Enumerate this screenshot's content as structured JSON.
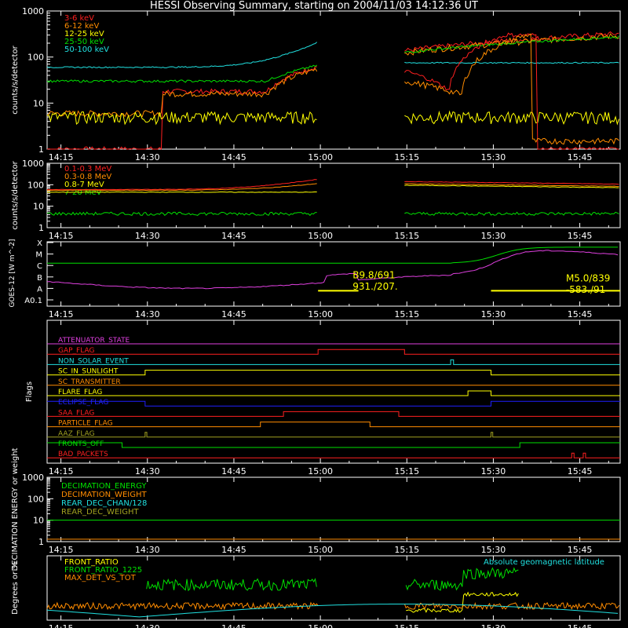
{
  "title": "HESSI Observing Summary, starting on 2004/11/03 14:12:36 UT",
  "time_ticks": [
    "14:15",
    "14:30",
    "14:45",
    "15:00",
    "15:15",
    "15:30",
    "15:45"
  ],
  "colors": {
    "white": "#ffffff",
    "red": "#ff2020",
    "orange": "#ff8c00",
    "yellow": "#ffff00",
    "green": "#00e000",
    "cyan": "#20e0e0",
    "magenta": "#e040e0",
    "blue": "#2020ff",
    "olive": "#a0a020"
  },
  "chart_data": [
    {
      "type": "line",
      "ylabel": "counts/s/detector",
      "ylim": [
        1,
        1000
      ],
      "log": true,
      "ytick_labels": [
        "1",
        "10",
        "100",
        "1000"
      ],
      "series": [
        {
          "name": "3-6 keV",
          "color": "#ff2020"
        },
        {
          "name": "6-12 keV",
          "color": "#ff8c00"
        },
        {
          "name": "12-25 keV",
          "color": "#ffff00"
        },
        {
          "name": "25-50 keV",
          "color": "#00e000"
        },
        {
          "name": "50-100 keV",
          "color": "#20e0e0"
        }
      ]
    },
    {
      "type": "line",
      "ylabel": "counts/s/detector",
      "ylim": [
        1,
        1000
      ],
      "log": true,
      "ytick_labels": [
        "1",
        "10",
        "100",
        "1000"
      ],
      "series": [
        {
          "name": "0.1-0.3 MeV",
          "color": "#ff2020"
        },
        {
          "name": "0.3-0.8 MeV",
          "color": "#ff8c00"
        },
        {
          "name": "0.8-7 MeV",
          "color": "#ffff00"
        },
        {
          "name": "7-20 MeV",
          "color": "#00e000"
        }
      ]
    },
    {
      "type": "line",
      "ylabel": "GOES-12 [W m^-2]",
      "ytick_labels": [
        "A0.1",
        "A",
        "B",
        "C",
        "M",
        "X"
      ],
      "annotations": [
        "B9.8/691",
        "931./207.",
        "M5.0/839",
        "-583./91"
      ]
    },
    {
      "type": "line",
      "ylabel": "Flags",
      "flags": [
        {
          "name": "ATTENUATOR_STATE",
          "color": "#e040e0"
        },
        {
          "name": "GAP_FLAG",
          "color": "#ff2020"
        },
        {
          "name": "NON_SOLAR_EVENT",
          "color": "#20e0e0"
        },
        {
          "name": "SC_IN_SUNLIGHT",
          "color": "#ffff00"
        },
        {
          "name": "SC_TRANSMITTER",
          "color": "#ff8c00"
        },
        {
          "name": "FLARE_FLAG",
          "color": "#ffff00"
        },
        {
          "name": "ECLIPSE_FLAG",
          "color": "#2020ff"
        },
        {
          "name": "SAA_FLAG",
          "color": "#ff2020"
        },
        {
          "name": "PARTICLE_FLAG",
          "color": "#ff8c00"
        },
        {
          "name": "AAZ_FLAG",
          "color": "#a0a020"
        },
        {
          "name": "FRONTS_OFF",
          "color": "#00e000"
        },
        {
          "name": "BAD_PACKETS",
          "color": "#ff2020"
        }
      ]
    },
    {
      "type": "line",
      "ylabel": "DECIMATION ENERGY or weight",
      "ylim": [
        1,
        1000
      ],
      "log": true,
      "ytick_labels": [
        "1",
        "10",
        "100",
        "1000"
      ],
      "series": [
        {
          "name": "DECIMATION_ENERGY",
          "color": "#00e000"
        },
        {
          "name": "DECIMATION_WEIGHT",
          "color": "#ff8c00"
        },
        {
          "name": "REAR_DEC_CHAN/128",
          "color": "#20e0e0"
        },
        {
          "name": "REAR_DEC_WEIGHT",
          "color": "#a0a020"
        }
      ]
    },
    {
      "type": "line",
      "ylabel": "Degrees or %",
      "series": [
        {
          "name": "FRONT_RATIO",
          "color": "#ffff00"
        },
        {
          "name": "FRONT_RATIO_1225",
          "color": "#00e000"
        },
        {
          "name": "MAX_DET_VS_TOT",
          "color": "#ff8c00"
        },
        {
          "name": "Absolute geomagnetic latitude",
          "color": "#20e0e0"
        }
      ]
    }
  ]
}
